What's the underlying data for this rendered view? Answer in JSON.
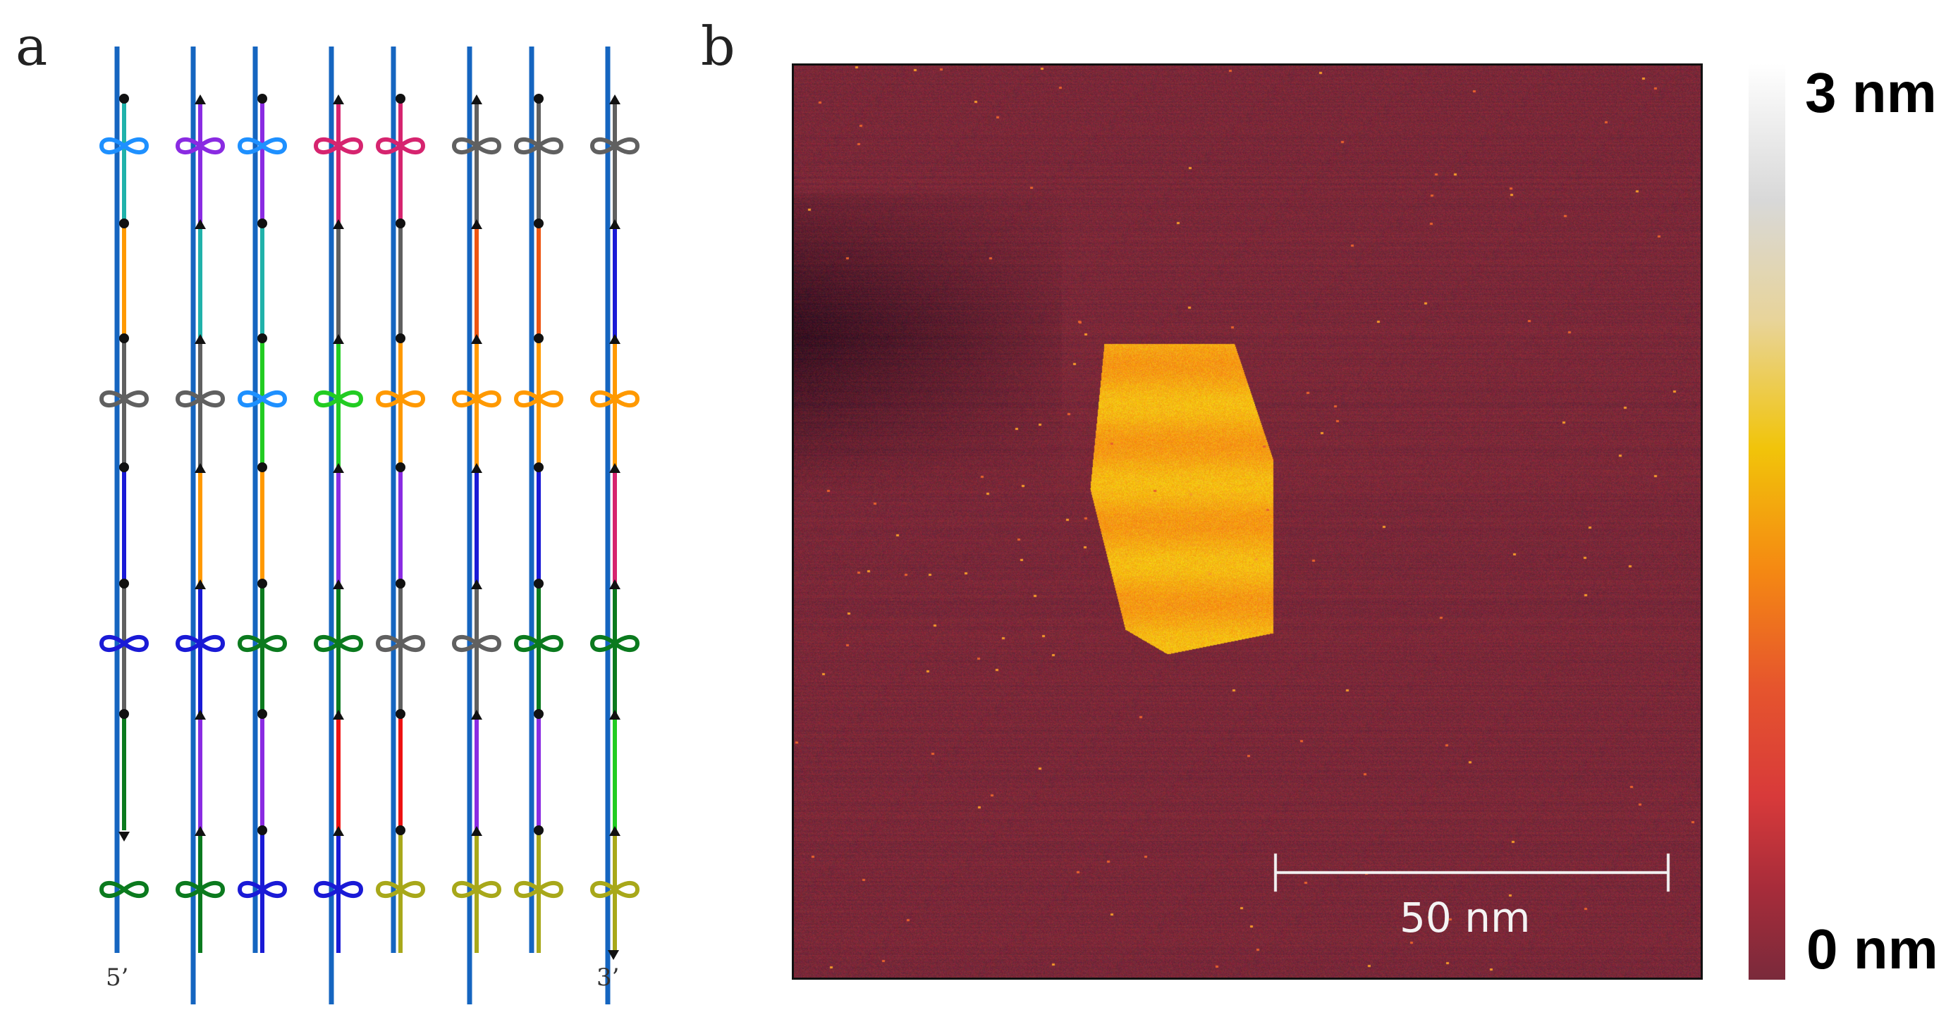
{
  "panel_a": {
    "label": "a",
    "end_5": "5’",
    "end_3": "3’",
    "scaffold_color": "#1565c0",
    "columns": [
      {
        "dot_top": "dot",
        "segments": [
          "#20b2aa",
          "#ff9900",
          "#606060",
          "#1a1ad6",
          "#606060",
          "#0b7a1e"
        ],
        "crossovers": [
          "#1e90ff",
          "#606060",
          "#1a1ad6",
          "#0b7a1e"
        ]
      },
      {
        "dot_top": "tri",
        "segments": [
          "#8a2be2",
          "#20b2aa",
          "#606060",
          "#ff9900",
          "#1a1ad6",
          "#8a2be2",
          "#0b7a1e"
        ],
        "crossovers": [
          "#8a2be2",
          "#606060",
          "#1a1ad6",
          "#0b7a1e"
        ]
      },
      {
        "dot_top": "dot",
        "segments": [
          "#8a2be2",
          "#20b2aa",
          "#22cc22",
          "#ff9900",
          "#0b7a1e",
          "#8a2be2",
          "#1a1ad6"
        ],
        "crossovers": [
          "#1e90ff",
          "#1e90ff",
          "#0b7a1e",
          "#1a1ad6"
        ]
      },
      {
        "dot_top": "tri",
        "segments": [
          "#d6246f",
          "#606060",
          "#22cc22",
          "#8a2be2",
          "#0b7a1e",
          "#ee1111",
          "#1a1ad6"
        ],
        "crossovers": [
          "#d6246f",
          "#22cc22",
          "#0b7a1e",
          "#1a1ad6"
        ]
      },
      {
        "dot_top": "dot",
        "segments": [
          "#d6246f",
          "#606060",
          "#ff9900",
          "#8a2be2",
          "#606060",
          "#ee1111",
          "#a8a81a"
        ],
        "crossovers": [
          "#d6246f",
          "#ff9900",
          "#606060",
          "#a8a81a"
        ]
      },
      {
        "dot_top": "tri",
        "segments": [
          "#606060",
          "#ee5511",
          "#ff9900",
          "#1a1ad6",
          "#606060",
          "#8a2be2",
          "#a8a81a"
        ],
        "crossovers": [
          "#606060",
          "#ff9900",
          "#606060",
          "#a8a81a"
        ]
      },
      {
        "dot_top": "dot",
        "segments": [
          "#606060",
          "#ee5511",
          "#ff9900",
          "#1a1ad6",
          "#0b7a1e",
          "#8a2be2",
          "#a8a81a"
        ],
        "crossovers": [
          "#606060",
          "#ff9900",
          "#0b7a1e",
          "#a8a81a"
        ]
      },
      {
        "dot_top": "tri",
        "segments": [
          "#606060",
          "#1a1ad6",
          "#ff9900",
          "#d6246f",
          "#0b7a1e",
          "#22cc22",
          "#a8a81a"
        ],
        "crossovers": [
          "#606060",
          "#ff9900",
          "#0b7a1e",
          "#a8a81a"
        ]
      }
    ]
  },
  "panel_b": {
    "label": "b",
    "scale_bar_label": "50 nm",
    "colorbar_max": "3 nm",
    "colorbar_min": "0 nm",
    "colormap": [
      "#7a2a3b",
      "#a72c3a",
      "#d83a3a",
      "#e6552d",
      "#f58a12",
      "#f1c40a",
      "#e8d49a",
      "#d8d8d8",
      "#ffffff"
    ]
  }
}
